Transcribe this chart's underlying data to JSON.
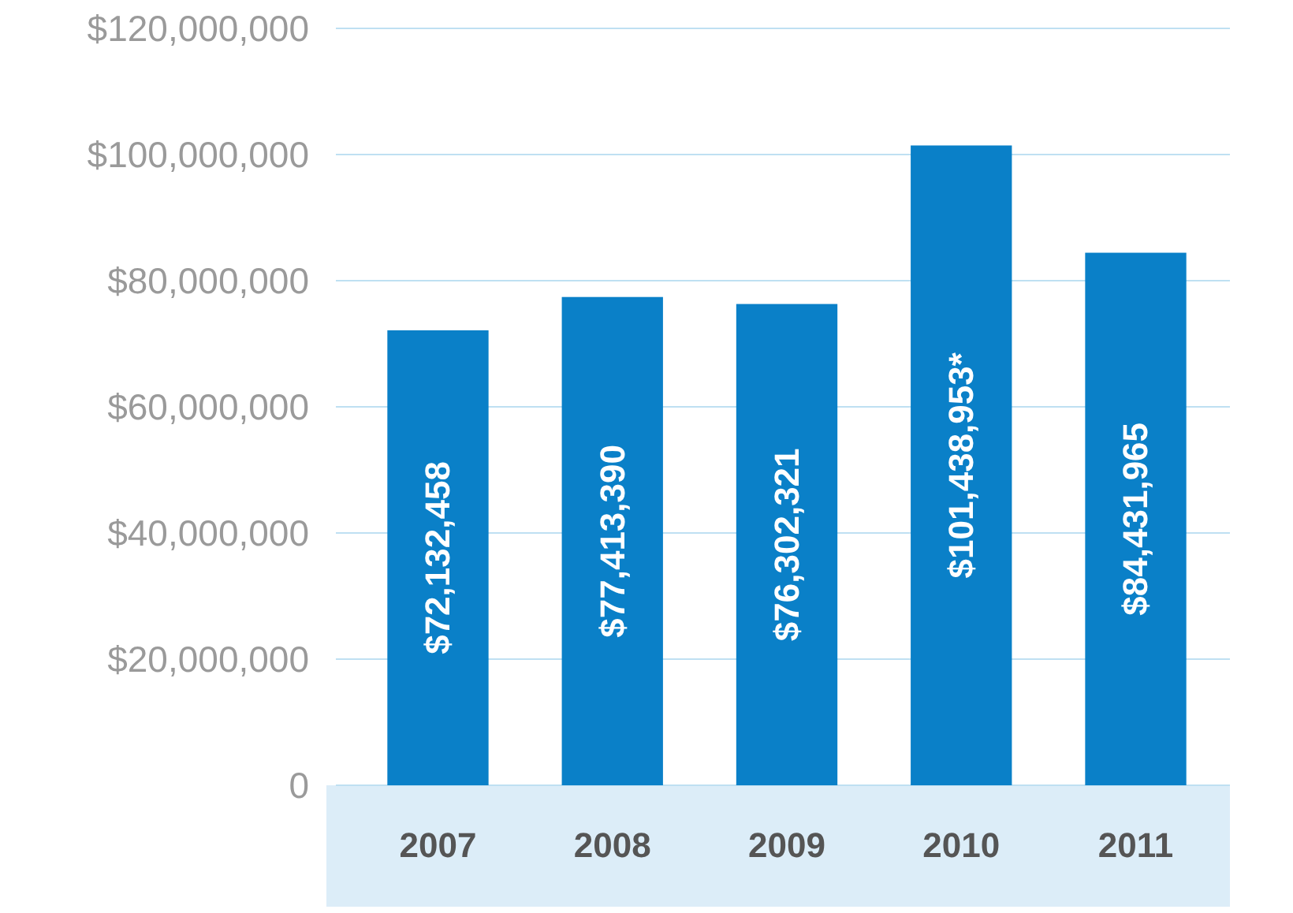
{
  "chart_data": {
    "type": "bar",
    "categories": [
      "2007",
      "2008",
      "2009",
      "2010",
      "2011"
    ],
    "values": [
      72132458,
      77413390,
      76302321,
      101438953,
      84431965
    ],
    "value_labels": [
      "$72,132,458",
      "$77,413,390",
      "$76,302,321",
      "$101,438,953*",
      "$84,431,965"
    ],
    "color": "#0a80c8",
    "ylim": [
      0,
      120000000
    ],
    "yticks": [
      {
        "value": 0,
        "label": "0"
      },
      {
        "value": 20000000,
        "label": "$20,000,000"
      },
      {
        "value": 40000000,
        "label": "$40,000,000"
      },
      {
        "value": 60000000,
        "label": "$60,000,000"
      },
      {
        "value": 80000000,
        "label": "$80,000,000"
      },
      {
        "value": 100000000,
        "label": "$100,000,000"
      },
      {
        "value": 120000000,
        "label": "$120,000,000"
      }
    ],
    "grid": "y"
  }
}
